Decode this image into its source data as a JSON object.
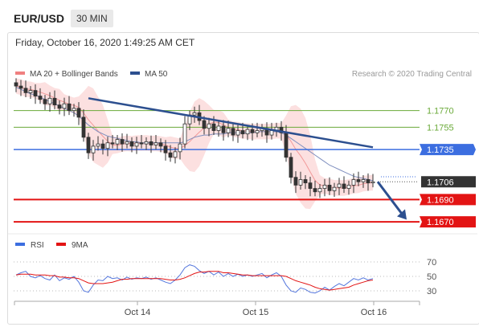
{
  "header": {
    "symbol": "EUR/USD",
    "timeframe": "30 MIN",
    "datetime": "Friday, October 16, 2020 1:49:25 AM CET"
  },
  "chart_data": {
    "type": "candlestick",
    "legend": [
      {
        "name": "MA 20 + Bollinger Bands",
        "color": "#f08080"
      },
      {
        "name": "MA 50",
        "color": "#2c4f8f"
      }
    ],
    "credit": "Research © 2020 Trading Central",
    "price_axis": {
      "min": 1.166,
      "max": 1.18
    },
    "x_labels": [
      "Oct 14",
      "Oct 15",
      "Oct 16"
    ],
    "levels": [
      {
        "value": 1.177,
        "label": "1.1770",
        "kind": "target",
        "color": "#6aaa38"
      },
      {
        "value": 1.1755,
        "label": "1.1755",
        "kind": "target",
        "color": "#6aaa38"
      },
      {
        "value": 1.1735,
        "label": "1.1735",
        "kind": "pivot",
        "color": "#3c6ee0"
      },
      {
        "value": 1.1706,
        "label": "1.1706",
        "kind": "last",
        "color": "#333333"
      },
      {
        "value": 1.169,
        "label": "1.1690",
        "kind": "support",
        "color": "#e31414"
      },
      {
        "value": 1.167,
        "label": "1.1670",
        "kind": "support",
        "color": "#e31414"
      }
    ],
    "close_series": [
      1.1792,
      1.179,
      1.1786,
      1.1788,
      1.1783,
      1.178,
      1.1776,
      1.1781,
      1.1775,
      1.1772,
      1.1776,
      1.177,
      1.1772,
      1.1764,
      1.1746,
      1.1732,
      1.1738,
      1.174,
      1.1736,
      1.1741,
      1.174,
      1.1744,
      1.174,
      1.1742,
      1.1738,
      1.1741,
      1.174,
      1.1742,
      1.1739,
      1.1741,
      1.1738,
      1.1732,
      1.1728,
      1.1733,
      1.174,
      1.1758,
      1.1766,
      1.1768,
      1.1761,
      1.1754,
      1.1758,
      1.1752,
      1.1756,
      1.175,
      1.1754,
      1.1748,
      1.1752,
      1.1749,
      1.1753,
      1.175,
      1.1752,
      1.1754,
      1.1748,
      1.1752,
      1.1755,
      1.175,
      1.1728,
      1.171,
      1.1703,
      1.1708,
      1.1705,
      1.17,
      1.1697,
      1.17,
      1.1703,
      1.1698,
      1.1701,
      1.1704,
      1.17,
      1.1703,
      1.1708,
      1.1706,
      1.1708,
      1.1705,
      1.1706
    ],
    "ma50_series": [
      1.1791,
      1.1789,
      1.1787,
      1.1785,
      1.1784,
      1.1782,
      1.178,
      1.1778,
      1.1776,
      1.1774,
      1.1772,
      1.177,
      1.1768,
      1.1765,
      1.1761,
      1.1757,
      1.1754,
      1.1751,
      1.1749,
      1.1747,
      1.1746,
      1.1745,
      1.1744,
      1.1743,
      1.1742,
      1.1742,
      1.1741,
      1.1741,
      1.1741,
      1.1741,
      1.1741,
      1.1741,
      1.1741,
      1.1741,
      1.1741,
      1.1742,
      1.1744,
      1.1746,
      1.1747,
      1.1748,
      1.1748,
      1.1749,
      1.1749,
      1.1749,
      1.175,
      1.175,
      1.175,
      1.175,
      1.175,
      1.175,
      1.1751,
      1.1751,
      1.1751,
      1.1751,
      1.1751,
      1.175,
      1.1748,
      1.1745,
      1.1742,
      1.1739,
      1.1736,
      1.1733,
      1.173,
      1.1727,
      1.1724,
      1.1721,
      1.1719,
      1.1717,
      1.1715,
      1.1713,
      1.1711,
      1.171,
      1.1709,
      1.1708,
      1.1707
    ],
    "trendline": {
      "from": {
        "index": 15,
        "value": 1.1781
      },
      "to": {
        "index": 74,
        "value": 1.1737
      }
    },
    "forecast_arrow": {
      "from": {
        "index": 75,
        "value": 1.1706
      },
      "to": {
        "index": 81,
        "value": 1.1672
      }
    },
    "rsi": {
      "legend": [
        {
          "name": "RSI",
          "color": "#3c6ee0"
        },
        {
          "name": "9MA",
          "color": "#e31414"
        }
      ],
      "levels": [
        70,
        50,
        30
      ],
      "rsi_series": [
        52,
        55,
        57,
        50,
        48,
        51,
        47,
        45,
        52,
        44,
        48,
        46,
        50,
        42,
        30,
        28,
        38,
        45,
        44,
        50,
        47,
        48,
        45,
        49,
        46,
        48,
        47,
        49,
        46,
        48,
        45,
        42,
        40,
        45,
        52,
        62,
        66,
        64,
        58,
        54,
        57,
        52,
        56,
        50,
        54,
        50,
        53,
        50,
        52,
        50,
        52,
        54,
        48,
        52,
        55,
        50,
        38,
        30,
        28,
        34,
        32,
        28,
        27,
        30,
        35,
        31,
        36,
        40,
        37,
        42,
        47,
        45,
        48,
        45,
        47
      ],
      "ma_series": [
        52,
        53,
        53,
        53,
        52,
        52,
        52,
        51,
        51,
        49,
        49,
        48,
        48,
        47,
        44,
        41,
        40,
        40,
        40,
        41,
        42,
        44,
        46,
        46,
        47,
        47,
        47,
        47,
        47,
        47,
        47,
        46,
        45,
        45,
        46,
        48,
        51,
        54,
        56,
        56,
        57,
        57,
        57,
        55,
        55,
        54,
        53,
        52,
        52,
        51,
        51,
        51,
        51,
        51,
        51,
        51,
        50,
        47,
        44,
        42,
        40,
        38,
        35,
        33,
        32,
        31,
        32,
        33,
        34,
        35,
        38,
        40,
        42,
        44,
        45
      ]
    }
  }
}
